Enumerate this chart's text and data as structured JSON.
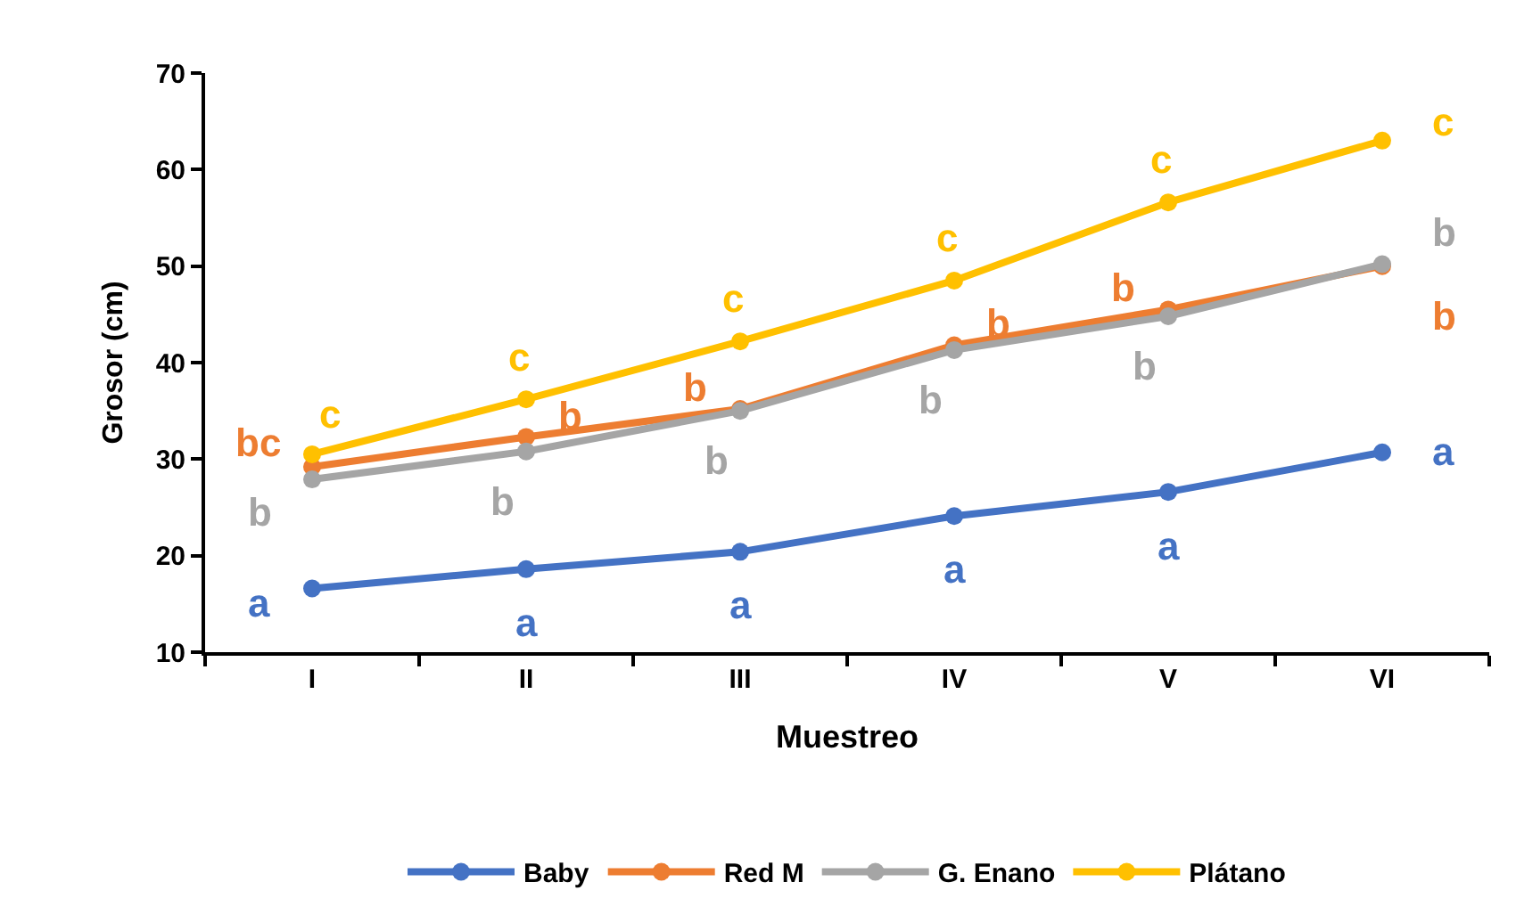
{
  "chart_data": {
    "type": "line",
    "xlabel": "Muestreo",
    "ylabel": "Grosor (cm)",
    "categories": [
      "I",
      "II",
      "III",
      "IV",
      "V",
      "VI"
    ],
    "ylim": [
      10,
      70
    ],
    "yticks": [
      10,
      20,
      30,
      40,
      50,
      60,
      70
    ],
    "legend": "bottom",
    "marker": "circle",
    "line_style": "solid",
    "series": [
      {
        "name": "Baby",
        "color": "#4472c4",
        "values": [
          16.6,
          18.6,
          20.4,
          24.1,
          26.6,
          30.7
        ],
        "value_labels": [
          "a",
          "a",
          "a",
          "a",
          "a",
          "a"
        ]
      },
      {
        "name": "Red M",
        "color": "#ed7d31",
        "values": [
          29.2,
          32.3,
          35.2,
          41.8,
          45.5,
          50.0
        ],
        "value_labels": [
          "bc",
          "b",
          "b",
          "b",
          "b",
          "b"
        ]
      },
      {
        "name": "G. Enano",
        "color": "#a5a5a5",
        "values": [
          27.9,
          30.8,
          35.0,
          41.3,
          44.8,
          50.2
        ],
        "value_labels": [
          "b",
          "b",
          "b",
          "b",
          "b",
          "b"
        ]
      },
      {
        "name": "Plátano",
        "color": "#ffc000",
        "values": [
          30.5,
          36.2,
          42.2,
          48.5,
          56.6,
          63.0
        ],
        "value_labels": [
          "c",
          "c",
          "c",
          "c",
          "c",
          "c"
        ]
      }
    ]
  }
}
